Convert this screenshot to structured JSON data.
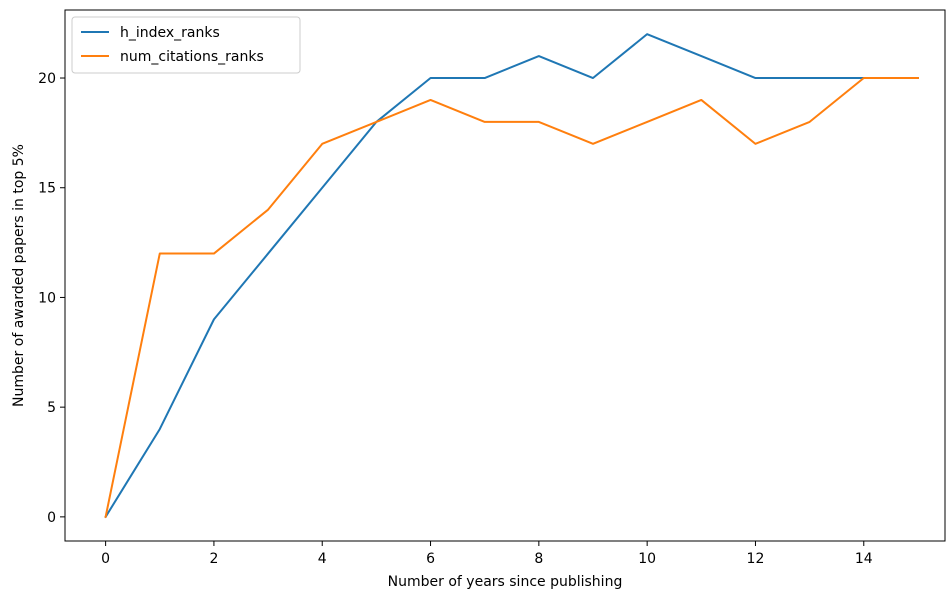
{
  "chart_data": {
    "type": "line",
    "title": "",
    "xlabel": "Number of years since publishing",
    "ylabel": "Number of awarded papers in top 5%",
    "x": [
      0,
      1,
      2,
      3,
      4,
      5,
      6,
      7,
      8,
      9,
      10,
      11,
      12,
      13,
      14,
      15
    ],
    "xlim": [
      -0.75,
      15.5
    ],
    "ylim": [
      -1.1,
      23.1
    ],
    "xticks": [
      0,
      2,
      4,
      6,
      8,
      10,
      12,
      14
    ],
    "yticks": [
      0,
      5,
      10,
      15,
      20
    ],
    "grid": false,
    "legend_position": "top-left",
    "series": [
      {
        "name": "h_index_ranks",
        "color": "#1f77b4",
        "values": [
          0,
          4,
          9,
          12,
          15,
          18,
          20,
          20,
          21,
          20,
          22,
          21,
          20,
          20,
          20,
          20
        ]
      },
      {
        "name": "num_citations_ranks",
        "color": "#ff7f0e",
        "values": [
          0,
          12,
          12,
          14,
          17,
          18,
          19,
          18,
          18,
          17,
          18,
          19,
          17,
          18,
          20,
          20
        ]
      }
    ]
  }
}
